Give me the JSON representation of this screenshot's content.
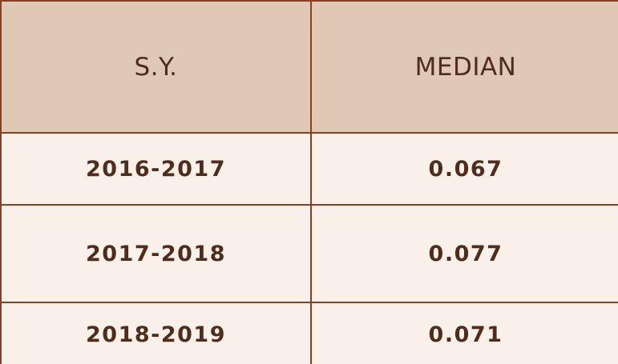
{
  "table": {
    "headers": [
      "S.Y.",
      "MEDIAN"
    ],
    "rows": [
      {
        "sy": "2016-2017",
        "median": "0.067"
      },
      {
        "sy": "2017-2018",
        "median": "0.077"
      },
      {
        "sy": "2018-2019",
        "median": "0.071"
      }
    ]
  },
  "colors": {
    "header_bg": "#dfc8b4",
    "cell_bg": "#f8f0e9",
    "border": "#8a3f22",
    "text": "#4f2d1c"
  }
}
